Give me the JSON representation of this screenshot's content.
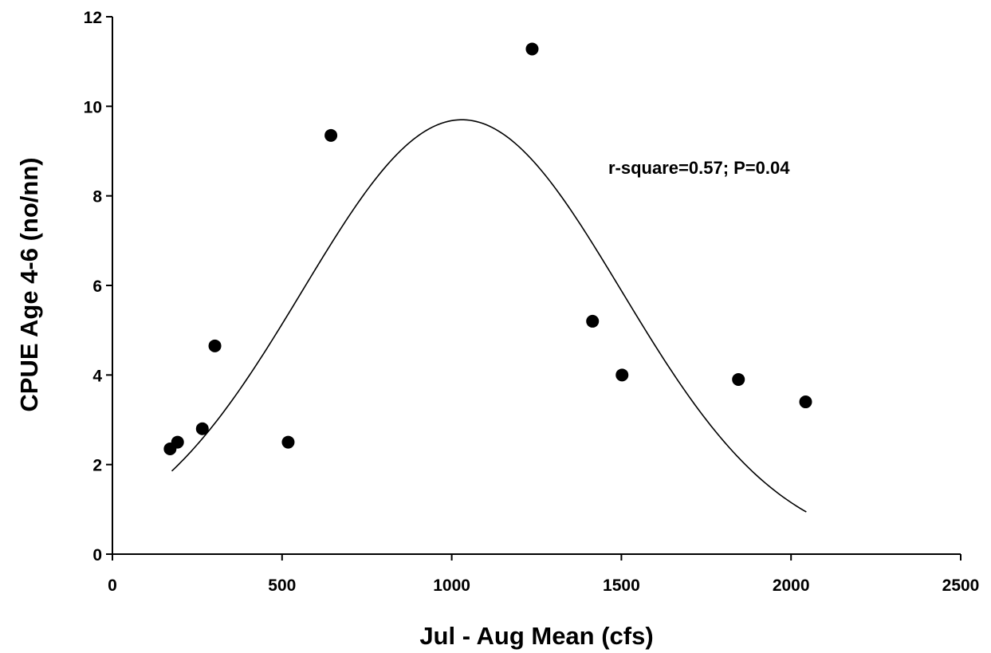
{
  "chart_data": {
    "type": "scatter",
    "title": "",
    "xlabel": "Jul - Aug Mean (cfs)",
    "ylabel": "CPUE Age 4-6 (no/nn)",
    "xlim": [
      0,
      2500
    ],
    "ylim": [
      0,
      12
    ],
    "x_ticks": [
      0,
      500,
      1000,
      1500,
      2000,
      2500
    ],
    "y_ticks": [
      0,
      2,
      4,
      6,
      8,
      10,
      12
    ],
    "x_tick_labels": [
      "0",
      "500",
      "1000",
      "1500",
      "2000",
      "2500"
    ],
    "y_tick_labels": [
      "0",
      "2",
      "4",
      "6",
      "8",
      "10",
      "12"
    ],
    "grid": false,
    "annotation": "r-square=0.57; P=0.04",
    "points": [
      {
        "x": 170,
        "y": 2.35
      },
      {
        "x": 192,
        "y": 2.5
      },
      {
        "x": 265,
        "y": 2.8
      },
      {
        "x": 302,
        "y": 4.65
      },
      {
        "x": 518,
        "y": 2.5
      },
      {
        "x": 644,
        "y": 9.35
      },
      {
        "x": 1237,
        "y": 11.28
      },
      {
        "x": 1415,
        "y": 5.2
      },
      {
        "x": 1502,
        "y": 4.0
      },
      {
        "x": 1845,
        "y": 3.9
      },
      {
        "x": 2043,
        "y": 3.4
      }
    ],
    "fit_curve": {
      "type": "gaussian",
      "amplitude": 9.7,
      "center": 1030,
      "width": 470,
      "x_range": [
        175,
        2045
      ]
    },
    "colors": {
      "points": "#000000",
      "curve": "#000000",
      "axes": "#000000",
      "background": "#ffffff"
    }
  }
}
